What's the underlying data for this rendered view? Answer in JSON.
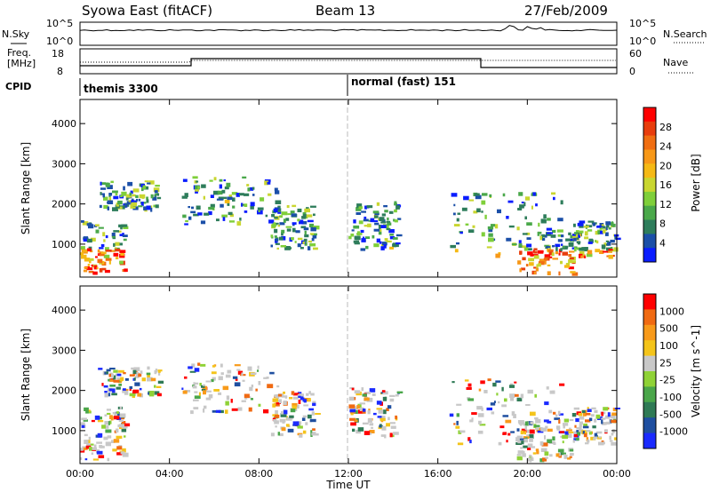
{
  "header": {
    "station": "Syowa East (fitACF)",
    "beam": "Beam 13",
    "date": "27/Feb/2009"
  },
  "noise_panel": {
    "left_label": "N.Sky",
    "right_label": "N.Search",
    "left_ticks": [
      "10^5",
      "10^0"
    ],
    "right_ticks": [
      "10^5",
      "10^0"
    ]
  },
  "freq_panel": {
    "left_label_1": "Freq.",
    "left_label_2": "[MHz]",
    "right_label": "Nave",
    "left_ticks": [
      "18",
      "8"
    ],
    "right_ticks": [
      "60",
      "0"
    ]
  },
  "cpid": {
    "label": "CPID",
    "modes": [
      {
        "name": "themis 3300",
        "start_hour": 0
      },
      {
        "name": "normal (fast) 151",
        "start_hour": 12
      }
    ]
  },
  "chart_data": [
    {
      "type": "heatmap",
      "name": "power",
      "ylabel": "Slant Range [km]",
      "ylim": [
        180,
        4600
      ],
      "yticks": [
        1000,
        2000,
        3000,
        4000
      ],
      "xlim": [
        0,
        24
      ],
      "xticks": [
        "00:00",
        "04:00",
        "08:00",
        "12:00",
        "16:00",
        "20:00",
        "00:00"
      ],
      "colorbar": {
        "label": "Power [dB]",
        "ticks": [
          "28",
          "24",
          "20",
          "16",
          "12",
          "8",
          "4"
        ],
        "colors": [
          "#0a1dff",
          "#1b4fa8",
          "#2e7d5b",
          "#4aa84a",
          "#7fcf3a",
          "#c9d630",
          "#f5b915",
          "#f79818",
          "#f06e12",
          "#e83d0d",
          "#ff0000"
        ]
      },
      "regions": [
        {
          "t0": 0.0,
          "t1": 2.0,
          "r0": 300,
          "r1": 1600
        },
        {
          "t0": 0.8,
          "t1": 3.5,
          "r0": 1900,
          "r1": 2600
        },
        {
          "t0": 4.5,
          "t1": 8.8,
          "r0": 1500,
          "r1": 2700
        },
        {
          "t0": 8.5,
          "t1": 10.5,
          "r0": 900,
          "r1": 2000
        },
        {
          "t0": 12.0,
          "t1": 14.2,
          "r0": 900,
          "r1": 2100
        },
        {
          "t0": 16.5,
          "t1": 21.5,
          "r0": 700,
          "r1": 2300
        },
        {
          "t0": 19.5,
          "t1": 22.0,
          "r0": 300,
          "r1": 1300
        },
        {
          "t0": 22.0,
          "t1": 24.0,
          "r0": 700,
          "r1": 1600
        }
      ]
    },
    {
      "type": "heatmap",
      "name": "velocity",
      "ylabel": "Slant Range [km]",
      "xlabel": "Time UT",
      "ylim": [
        180,
        4600
      ],
      "yticks": [
        1000,
        2000,
        3000,
        4000
      ],
      "xlim": [
        0,
        24
      ],
      "xticks": [
        "00:00",
        "04:00",
        "08:00",
        "12:00",
        "16:00",
        "20:00",
        "00:00"
      ],
      "colorbar": {
        "label": "Velocity [m s^-1]",
        "ticks": [
          "1000",
          "500",
          "100",
          "25",
          "-25",
          "-100",
          "-500",
          "-1000"
        ],
        "colors": [
          "#1a2aff",
          "#1f4fa0",
          "#2f7a55",
          "#4aa64a",
          "#8fd236",
          "#c8c8c8",
          "#f4c41a",
          "#f89a1a",
          "#f06a12",
          "#ff0000"
        ]
      },
      "regions": [
        {
          "t0": 0.0,
          "t1": 2.0,
          "r0": 300,
          "r1": 1600
        },
        {
          "t0": 0.8,
          "t1": 3.5,
          "r0": 1900,
          "r1": 2600
        },
        {
          "t0": 4.5,
          "t1": 8.8,
          "r0": 1500,
          "r1": 2700
        },
        {
          "t0": 8.5,
          "t1": 10.5,
          "r0": 900,
          "r1": 2000
        },
        {
          "t0": 12.0,
          "t1": 14.2,
          "r0": 900,
          "r1": 2100
        },
        {
          "t0": 16.5,
          "t1": 21.5,
          "r0": 700,
          "r1": 2300
        },
        {
          "t0": 19.5,
          "t1": 22.0,
          "r0": 300,
          "r1": 1300
        },
        {
          "t0": 22.0,
          "t1": 24.0,
          "r0": 700,
          "r1": 1600
        }
      ]
    }
  ]
}
